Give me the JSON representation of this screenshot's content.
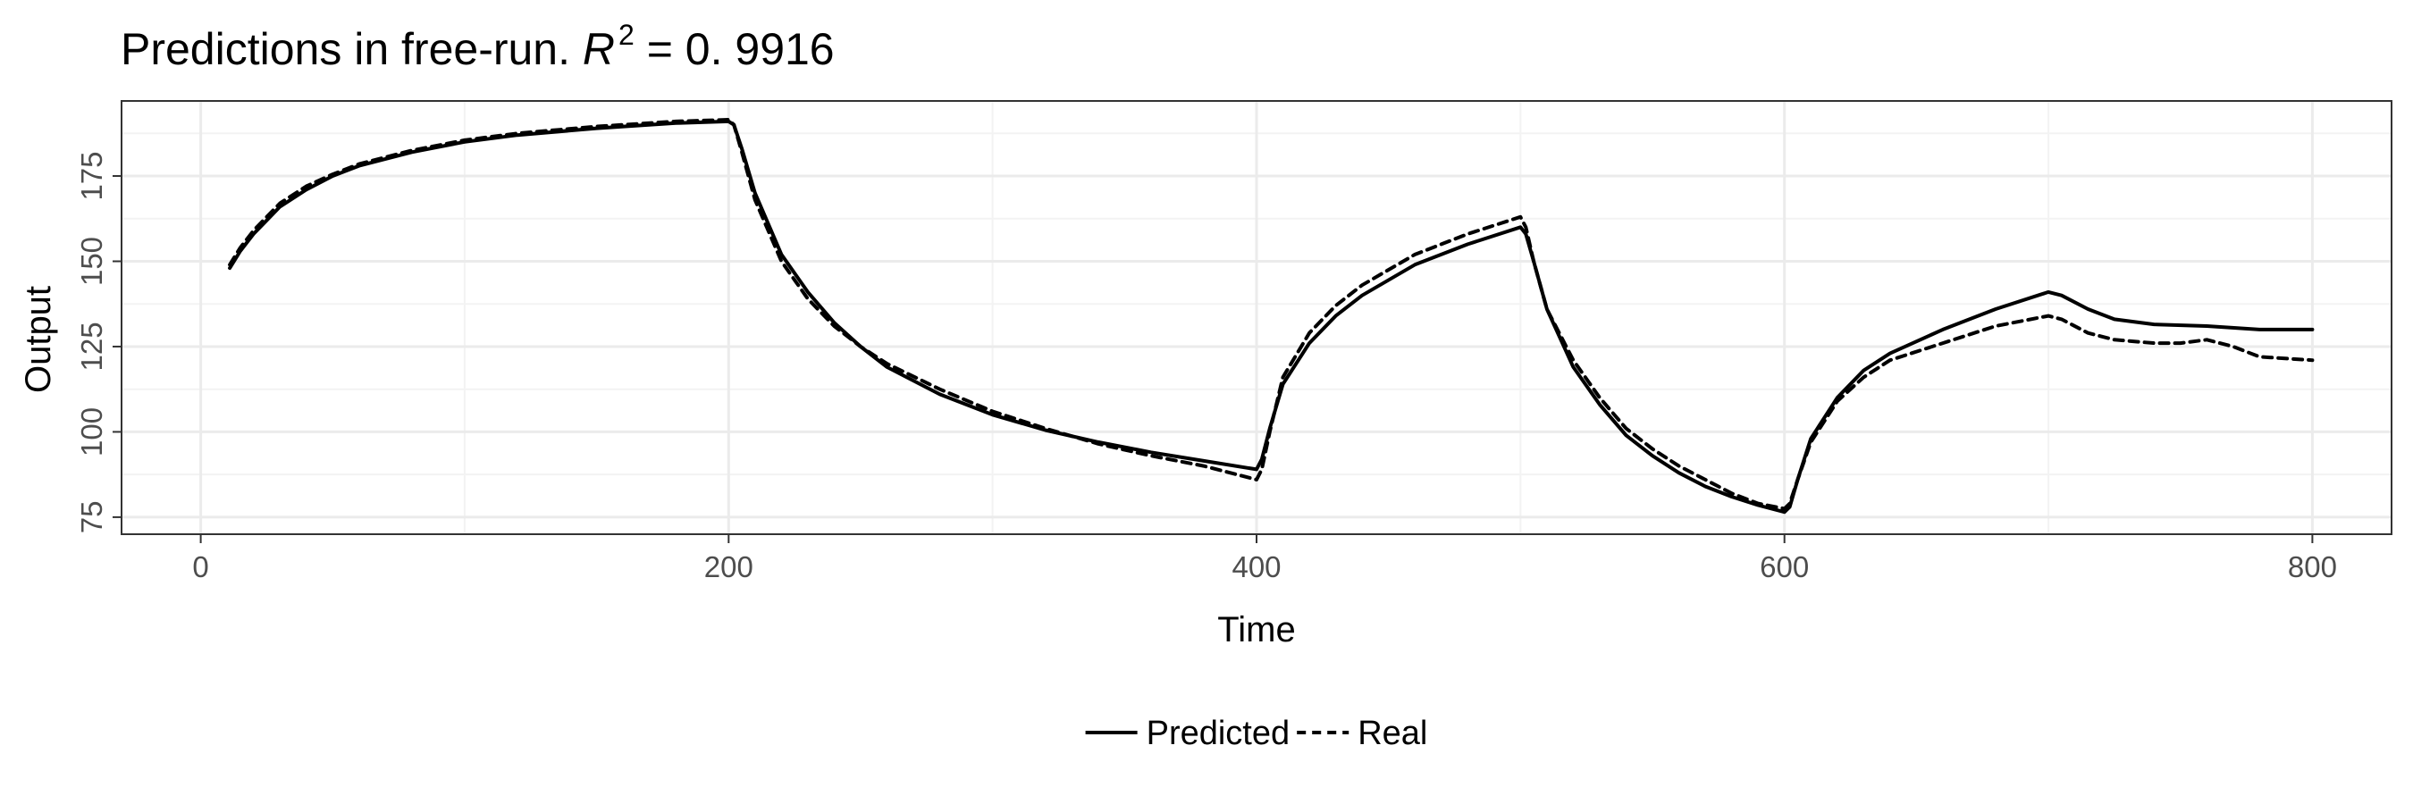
{
  "chart_data": {
    "type": "line",
    "title": {
      "prefix": "Predictions in free-run. ",
      "var": "R",
      "sup": "2",
      "suffix": " = 0. 9916"
    },
    "xlabel": "Time",
    "ylabel": "Output",
    "xlim": [
      -30,
      830
    ],
    "ylim": [
      70,
      197
    ],
    "x_ticks": [
      0,
      200,
      400,
      600,
      800
    ],
    "y_ticks": [
      75,
      100,
      125,
      150,
      175
    ],
    "grid": true,
    "legend_position": "bottom",
    "series": [
      {
        "name": "Predicted",
        "line_style": "solid",
        "color": "#000000",
        "points": [
          [
            11,
            148
          ],
          [
            15,
            153
          ],
          [
            20,
            158
          ],
          [
            25,
            162
          ],
          [
            30,
            166
          ],
          [
            40,
            171
          ],
          [
            50,
            175
          ],
          [
            60,
            178
          ],
          [
            80,
            182
          ],
          [
            100,
            185
          ],
          [
            120,
            187
          ],
          [
            150,
            189
          ],
          [
            180,
            190.5
          ],
          [
            200,
            191
          ],
          [
            202,
            190
          ],
          [
            205,
            183
          ],
          [
            210,
            170
          ],
          [
            220,
            152
          ],
          [
            230,
            141
          ],
          [
            240,
            132
          ],
          [
            250,
            125
          ],
          [
            260,
            119
          ],
          [
            280,
            111
          ],
          [
            300,
            105
          ],
          [
            320,
            100.5
          ],
          [
            340,
            97
          ],
          [
            360,
            94
          ],
          [
            380,
            91.5
          ],
          [
            400,
            89
          ],
          [
            402,
            92
          ],
          [
            405,
            101
          ],
          [
            410,
            114
          ],
          [
            420,
            126
          ],
          [
            430,
            134
          ],
          [
            440,
            140
          ],
          [
            460,
            149
          ],
          [
            480,
            155
          ],
          [
            500,
            160
          ],
          [
            502,
            158
          ],
          [
            505,
            150
          ],
          [
            510,
            136
          ],
          [
            520,
            119
          ],
          [
            530,
            108
          ],
          [
            540,
            99
          ],
          [
            550,
            93
          ],
          [
            560,
            88
          ],
          [
            570,
            84
          ],
          [
            580,
            81
          ],
          [
            590,
            78.5
          ],
          [
            600,
            76.5
          ],
          [
            602,
            78
          ],
          [
            605,
            86
          ],
          [
            610,
            98
          ],
          [
            620,
            110
          ],
          [
            630,
            118
          ],
          [
            640,
            123
          ],
          [
            660,
            130
          ],
          [
            680,
            136
          ],
          [
            700,
            141
          ],
          [
            705,
            140
          ],
          [
            715,
            136
          ],
          [
            725,
            133
          ],
          [
            740,
            131.5
          ],
          [
            760,
            131
          ],
          [
            780,
            130
          ],
          [
            800,
            130
          ]
        ]
      },
      {
        "name": "Real",
        "line_style": "dashed",
        "color": "#000000",
        "points": [
          [
            11,
            149
          ],
          [
            15,
            154
          ],
          [
            20,
            159
          ],
          [
            25,
            163
          ],
          [
            30,
            167
          ],
          [
            40,
            172
          ],
          [
            50,
            175.5
          ],
          [
            60,
            178.5
          ],
          [
            80,
            182.5
          ],
          [
            100,
            185.5
          ],
          [
            120,
            187.5
          ],
          [
            150,
            189.5
          ],
          [
            180,
            191
          ],
          [
            200,
            191.5
          ],
          [
            202,
            190
          ],
          [
            205,
            182
          ],
          [
            210,
            168
          ],
          [
            220,
            150
          ],
          [
            230,
            139
          ],
          [
            240,
            131
          ],
          [
            250,
            125
          ],
          [
            260,
            120
          ],
          [
            280,
            112.5
          ],
          [
            300,
            106
          ],
          [
            320,
            101
          ],
          [
            340,
            96.5
          ],
          [
            360,
            93
          ],
          [
            380,
            90
          ],
          [
            400,
            86
          ],
          [
            402,
            89
          ],
          [
            405,
            100
          ],
          [
            410,
            116
          ],
          [
            420,
            129
          ],
          [
            430,
            137
          ],
          [
            440,
            143
          ],
          [
            460,
            152
          ],
          [
            480,
            158
          ],
          [
            500,
            163
          ],
          [
            502,
            160
          ],
          [
            505,
            150
          ],
          [
            510,
            136
          ],
          [
            520,
            121
          ],
          [
            530,
            110
          ],
          [
            540,
            101
          ],
          [
            550,
            95
          ],
          [
            560,
            90
          ],
          [
            570,
            86
          ],
          [
            580,
            82
          ],
          [
            590,
            79
          ],
          [
            600,
            77.5
          ],
          [
            602,
            79
          ],
          [
            605,
            86
          ],
          [
            610,
            97
          ],
          [
            620,
            109
          ],
          [
            630,
            116
          ],
          [
            640,
            121
          ],
          [
            660,
            126
          ],
          [
            680,
            131
          ],
          [
            700,
            134
          ],
          [
            705,
            133
          ],
          [
            715,
            129
          ],
          [
            725,
            127
          ],
          [
            740,
            126
          ],
          [
            750,
            126
          ],
          [
            760,
            127
          ],
          [
            770,
            125
          ],
          [
            780,
            122
          ],
          [
            800,
            121
          ]
        ]
      }
    ]
  }
}
